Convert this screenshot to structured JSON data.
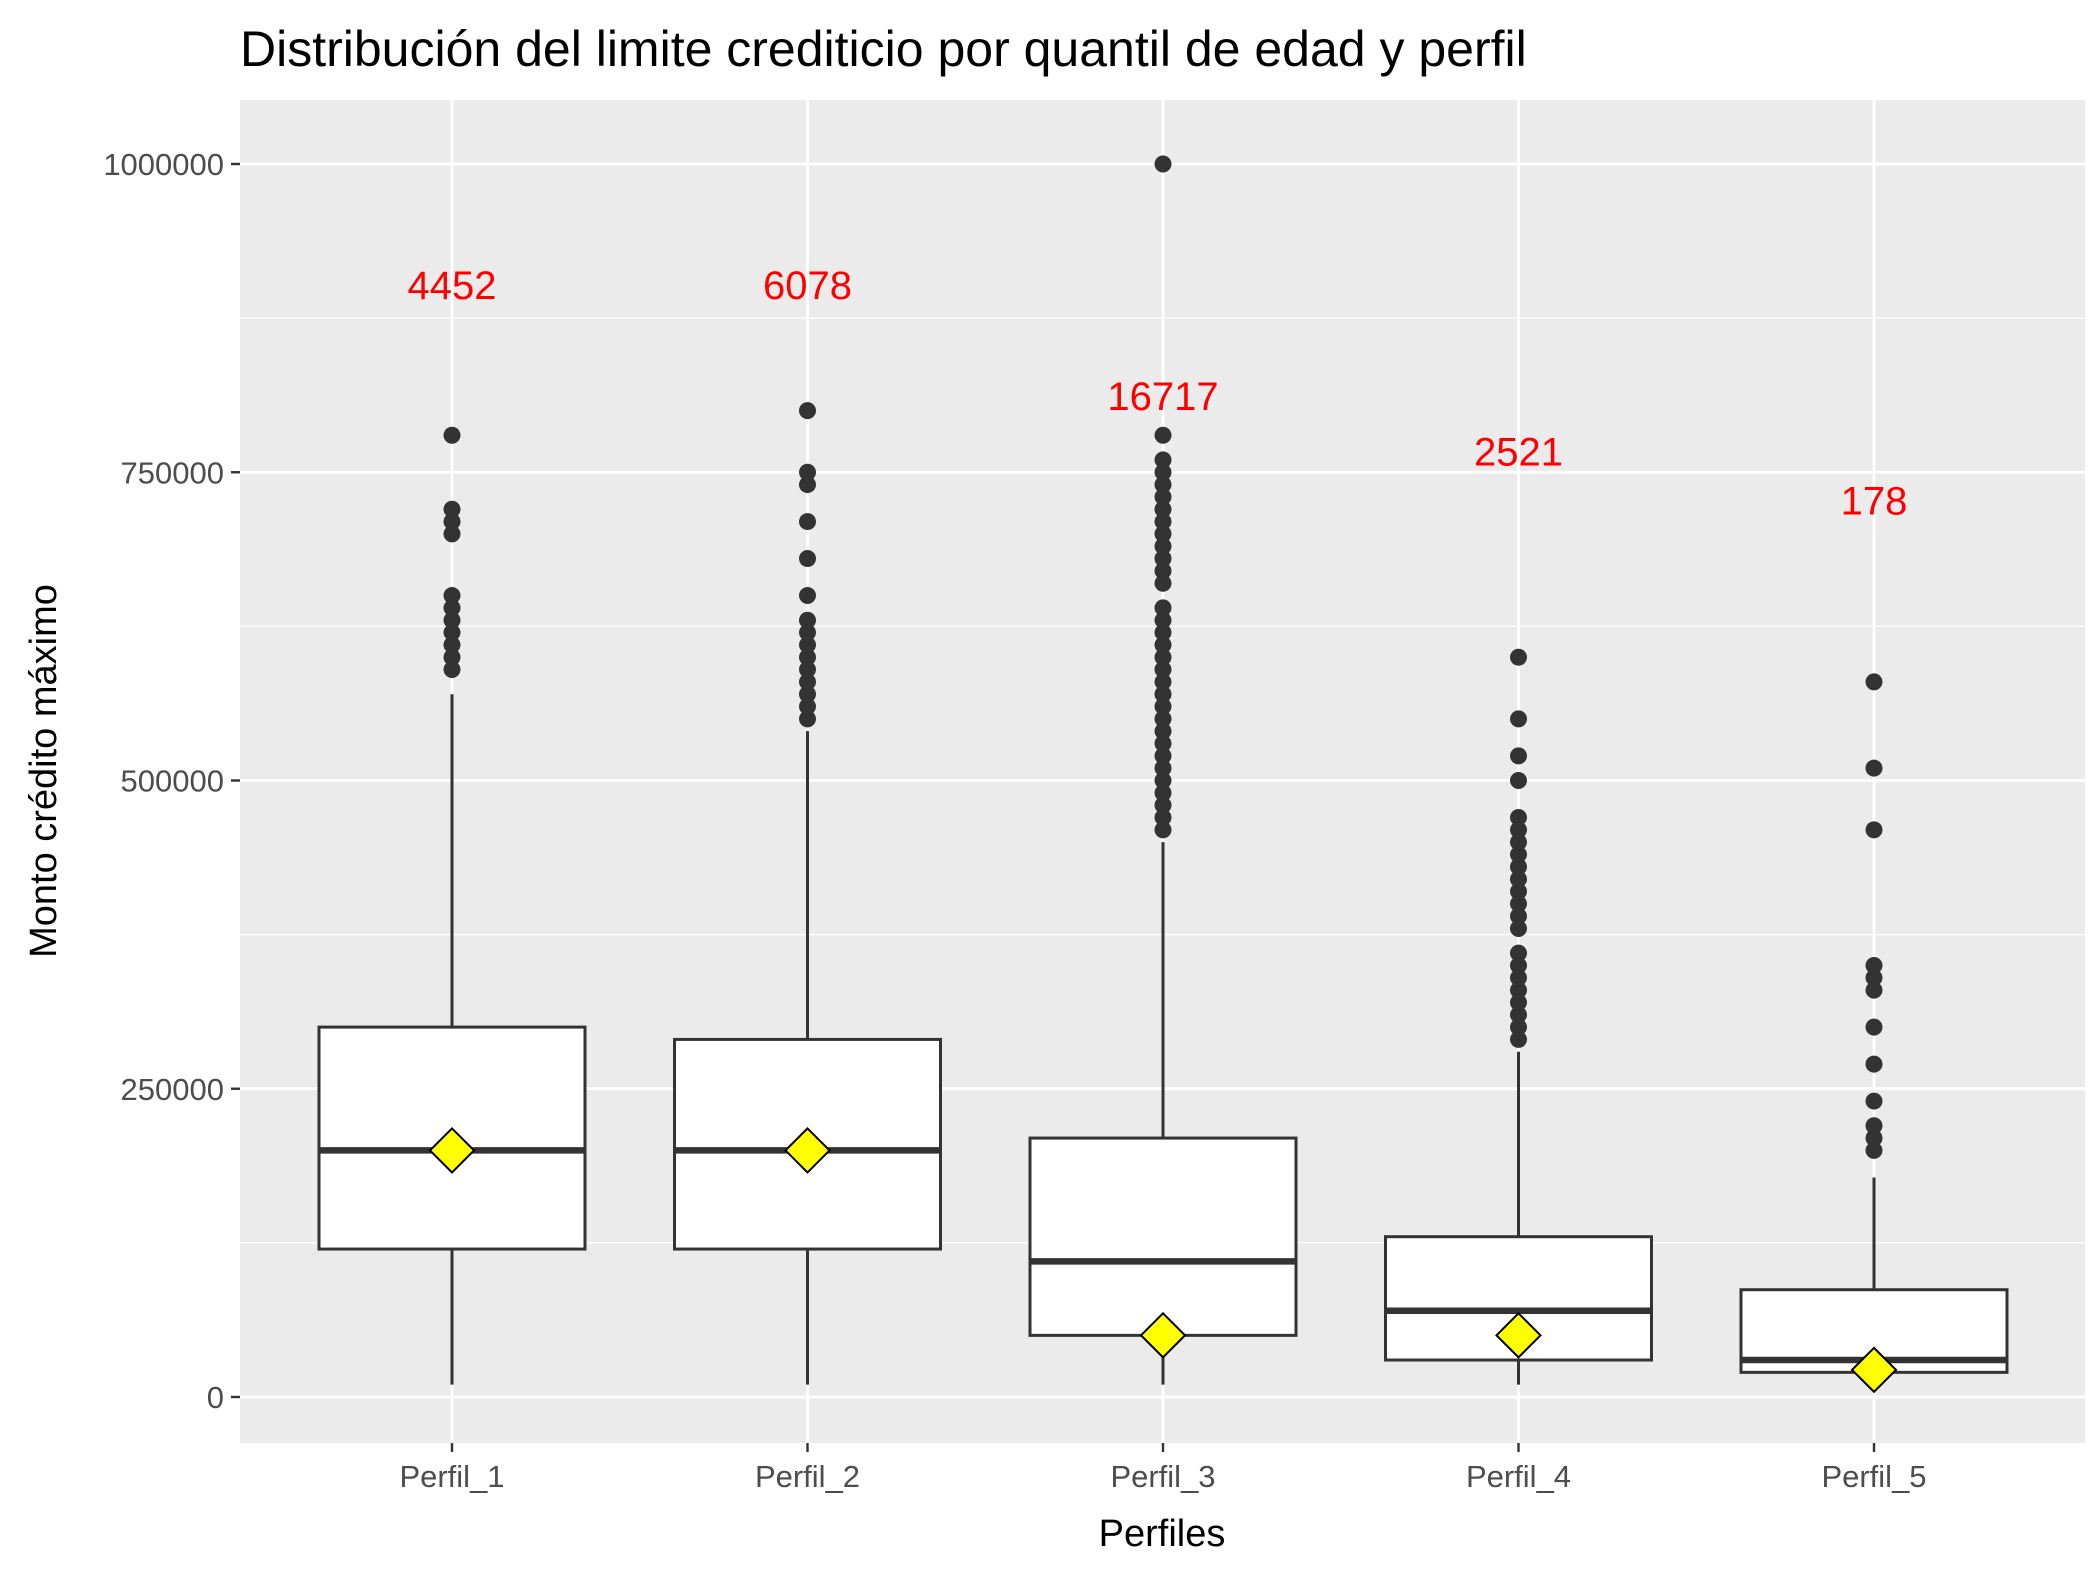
{
  "chart_data": {
    "type": "boxplot",
    "title": "Distribución del limite crediticio por quantil de edad y perfil",
    "xlabel": "Perfiles",
    "ylabel": "Monto crédito máximo",
    "categories": [
      "Perfil_1",
      "Perfil_2",
      "Perfil_3",
      "Perfil_4",
      "Perfil_5"
    ],
    "ylim": [
      -40000,
      1080000
    ],
    "yticks": [
      0,
      250000,
      500000,
      750000,
      1000000
    ],
    "ytick_labels": [
      "0",
      "250000",
      "500000",
      "750000",
      "1000000"
    ],
    "grid": true,
    "legend": "none",
    "colors": {
      "panel_bg": "#ebebeb",
      "grid": "#ffffff",
      "box_fill": "#ffffff",
      "box_line": "#333333",
      "outlier": "#333333",
      "mean_marker": "#ffff00",
      "count_label": "#ff0000",
      "tick_label": "#4d4d4d"
    },
    "boxes": [
      {
        "category": "Perfil_1",
        "whisker_low": 10000,
        "q1": 120000,
        "median": 200000,
        "q3": 300000,
        "whisker_high": 570000,
        "mean": 200000,
        "outliers": [
          590000,
          600000,
          610000,
          620000,
          630000,
          640000,
          650000,
          700000,
          710000,
          720000,
          780000
        ]
      },
      {
        "category": "Perfil_2",
        "whisker_low": 10000,
        "q1": 120000,
        "median": 200000,
        "q3": 290000,
        "whisker_high": 540000,
        "mean": 200000,
        "outliers": [
          550000,
          560000,
          570000,
          580000,
          590000,
          600000,
          610000,
          620000,
          630000,
          650000,
          680000,
          710000,
          740000,
          750000,
          800000
        ]
      },
      {
        "category": "Perfil_3",
        "whisker_low": 10000,
        "q1": 50000,
        "median": 110000,
        "q3": 210000,
        "whisker_high": 450000,
        "mean": 50000,
        "outliers": [
          460000,
          470000,
          480000,
          490000,
          500000,
          510000,
          520000,
          530000,
          540000,
          550000,
          560000,
          570000,
          580000,
          590000,
          600000,
          610000,
          620000,
          630000,
          640000,
          660000,
          670000,
          680000,
          690000,
          700000,
          710000,
          720000,
          730000,
          740000,
          750000,
          760000,
          780000,
          1000000
        ]
      },
      {
        "category": "Perfil_4",
        "whisker_low": 10000,
        "q1": 30000,
        "median": 70000,
        "q3": 130000,
        "whisker_high": 280000,
        "mean": 50000,
        "outliers": [
          290000,
          300000,
          310000,
          320000,
          330000,
          340000,
          350000,
          360000,
          380000,
          390000,
          400000,
          410000,
          420000,
          430000,
          440000,
          450000,
          460000,
          470000,
          500000,
          520000,
          550000,
          600000
        ]
      },
      {
        "category": "Perfil_5",
        "whisker_low": 20000,
        "q1": 20000,
        "median": 30000,
        "q3": 87000,
        "whisker_high": 178000,
        "mean": 22000,
        "outliers": [
          200000,
          210000,
          220000,
          240000,
          270000,
          300000,
          330000,
          340000,
          350000,
          460000,
          510000,
          580000
        ]
      }
    ],
    "annotations": [
      {
        "category": "Perfil_1",
        "text": "4452",
        "y": 902000
      },
      {
        "category": "Perfil_2",
        "text": "6078",
        "y": 902000
      },
      {
        "category": "Perfil_3",
        "text": "16717",
        "y": 812000
      },
      {
        "category": "Perfil_4",
        "text": "2521",
        "y": 767000
      },
      {
        "category": "Perfil_5",
        "text": "178",
        "y": 727000
      }
    ]
  }
}
